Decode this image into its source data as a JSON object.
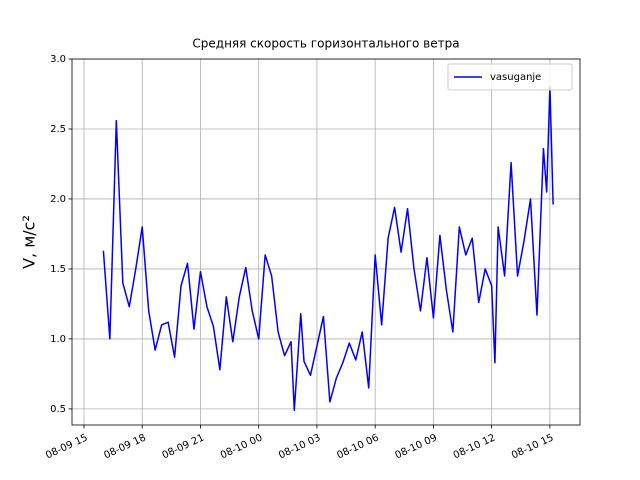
{
  "chart_data": {
    "type": "line",
    "title": "Средняя скорость горизонтального ветра",
    "ylabel": "V, м/с²",
    "legend": "upper right",
    "grid": true,
    "x": [
      "08-09 16:00",
      "08-09 16:20",
      "08-09 16:40",
      "08-09 17:00",
      "08-09 17:20",
      "08-09 17:40",
      "08-09 18:00",
      "08-09 18:20",
      "08-09 18:40",
      "08-09 19:00",
      "08-09 19:20",
      "08-09 19:40",
      "08-09 20:00",
      "08-09 20:20",
      "08-09 20:40",
      "08-09 21:00",
      "08-09 21:20",
      "08-09 21:40",
      "08-09 22:00",
      "08-09 22:20",
      "08-09 22:40",
      "08-09 23:00",
      "08-09 23:20",
      "08-09 23:40",
      "08-10 00:00",
      "08-10 00:20",
      "08-10 00:40",
      "08-10 01:00",
      "08-10 01:20",
      "08-10 01:40",
      "08-10 01:50",
      "08-10 02:10",
      "08-10 02:20",
      "08-10 02:40",
      "08-10 03:00",
      "08-10 03:20",
      "08-10 03:40",
      "08-10 04:00",
      "08-10 04:20",
      "08-10 04:40",
      "08-10 05:00",
      "08-10 05:20",
      "08-10 05:40",
      "08-10 06:00",
      "08-10 06:20",
      "08-10 06:40",
      "08-10 07:00",
      "08-10 07:20",
      "08-10 07:40",
      "08-10 08:00",
      "08-10 08:20",
      "08-10 08:40",
      "08-10 09:00",
      "08-10 09:20",
      "08-10 09:40",
      "08-10 10:00",
      "08-10 10:20",
      "08-10 10:40",
      "08-10 11:00",
      "08-10 11:20",
      "08-10 11:40",
      "08-10 12:00",
      "08-10 12:10",
      "08-10 12:20",
      "08-10 12:40",
      "08-10 13:00",
      "08-10 13:20",
      "08-10 13:40",
      "08-10 14:00",
      "08-10 14:20",
      "08-10 14:40",
      "08-10 14:50",
      "08-10 15:00",
      "08-10 15:10"
    ],
    "series": [
      {
        "name": "vasuganje",
        "color": "#0000ff",
        "values": [
          1.63,
          1.0,
          2.56,
          1.4,
          1.23,
          1.5,
          1.8,
          1.2,
          0.92,
          1.1,
          1.12,
          0.87,
          1.38,
          1.54,
          1.07,
          1.48,
          1.23,
          1.09,
          0.78,
          1.3,
          0.98,
          1.3,
          1.51,
          1.2,
          1.0,
          1.6,
          1.45,
          1.05,
          0.88,
          0.98,
          0.49,
          1.18,
          0.84,
          0.74,
          0.95,
          1.16,
          0.55,
          0.72,
          0.83,
          0.97,
          0.85,
          1.05,
          0.65,
          1.6,
          1.1,
          1.72,
          1.94,
          1.62,
          1.93,
          1.5,
          1.2,
          1.58,
          1.15,
          1.74,
          1.35,
          1.05,
          1.8,
          1.6,
          1.72,
          1.26,
          1.5,
          1.38,
          0.83,
          1.8,
          1.45,
          2.26,
          1.45,
          1.7,
          2.0,
          1.17,
          2.36,
          2.05,
          2.8,
          1.96
        ]
      }
    ],
    "xlim": [
      "08-09 14:23",
      "08-10 16:33"
    ],
    "xticks": [
      "08-09 15",
      "08-09 18",
      "08-09 21",
      "08-10 00",
      "08-10 03",
      "08-10 06",
      "08-10 09",
      "08-10 12",
      "08-10 15"
    ],
    "ylim": [
      0.385,
      3.0
    ],
    "yticks": [
      0.5,
      {
        "value": 1,
        "label": "1.0"
      },
      1.5,
      {
        "value": 2,
        "label": "2.0"
      },
      2.5,
      {
        "value": 3,
        "label": "3.0"
      }
    ]
  }
}
